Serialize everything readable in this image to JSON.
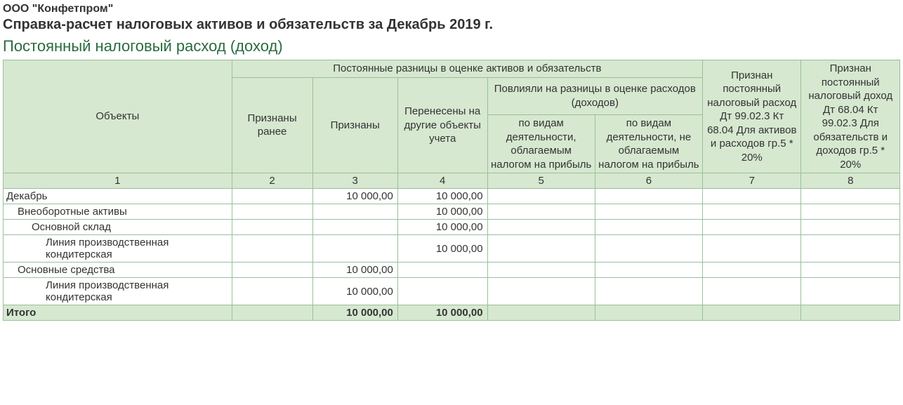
{
  "company": "ООО \"Конфетпром\"",
  "title": "Справка-расчет налоговых активов и обязательств за Декабрь 2019 г.",
  "subtitle": "Постоянный налоговый расход (доход)",
  "columns": {
    "objects": "Объекты",
    "group_diff": "Постоянные разницы в оценке активов и обязательств",
    "recog_before": "Признаны ранее",
    "recognized": "Признаны",
    "transferred": "Перенесены на другие объекты учета",
    "group_affected": "Повлияли на разницы в оценке расходов (доходов)",
    "by_taxable": "по видам деятельности, облагаемым налогом на прибыль",
    "by_nontaxable": "по видам деятельности, не облагаемым налогом на прибыль",
    "tax_expense": "Признан постоянный налоговый расход\nДт 99.02.3 Кт 68.04\nДля активов и расходов гр.5 * 20%",
    "tax_income": "Признан постоянный налоговый доход\nДт 68.04 Кт 99.02.3\nДля обязательств и доходов гр.5 * 20%"
  },
  "colnums": [
    "1",
    "2",
    "3",
    "4",
    "5",
    "6",
    "7",
    "8"
  ],
  "rows": [
    {
      "label": "Декабрь",
      "indent": 0,
      "c2": "",
      "c3": "10 000,00",
      "c4": "10 000,00",
      "c5": "",
      "c6": "",
      "c7": "",
      "c8": ""
    },
    {
      "label": "Внеоборотные активы",
      "indent": 1,
      "c2": "",
      "c3": "",
      "c4": "10 000,00",
      "c5": "",
      "c6": "",
      "c7": "",
      "c8": ""
    },
    {
      "label": "Основной склад",
      "indent": 2,
      "c2": "",
      "c3": "",
      "c4": "10 000,00",
      "c5": "",
      "c6": "",
      "c7": "",
      "c8": ""
    },
    {
      "label": "Линия производственная кондитерская",
      "indent": 3,
      "c2": "",
      "c3": "",
      "c4": "10 000,00",
      "c5": "",
      "c6": "",
      "c7": "",
      "c8": ""
    },
    {
      "label": "Основные средства",
      "indent": 1,
      "c2": "",
      "c3": "10 000,00",
      "c4": "",
      "c5": "",
      "c6": "",
      "c7": "",
      "c8": ""
    },
    {
      "label": "Линия производственная кондитерская",
      "indent": 3,
      "c2": "",
      "c3": "10 000,00",
      "c4": "",
      "c5": "",
      "c6": "",
      "c7": "",
      "c8": ""
    }
  ],
  "total": {
    "label": "Итого",
    "c2": "",
    "c3": "10 000,00",
    "c4": "10 000,00",
    "c5": "",
    "c6": "",
    "c7": "",
    "c8": ""
  },
  "style": {
    "header_bg": "#d6e8d0",
    "border": "#9bbf9b",
    "subtitle_color": "#2a6b3f",
    "col_widths_pct": [
      25.5,
      9,
      9.5,
      10,
      12,
      12,
      11,
      11
    ]
  }
}
